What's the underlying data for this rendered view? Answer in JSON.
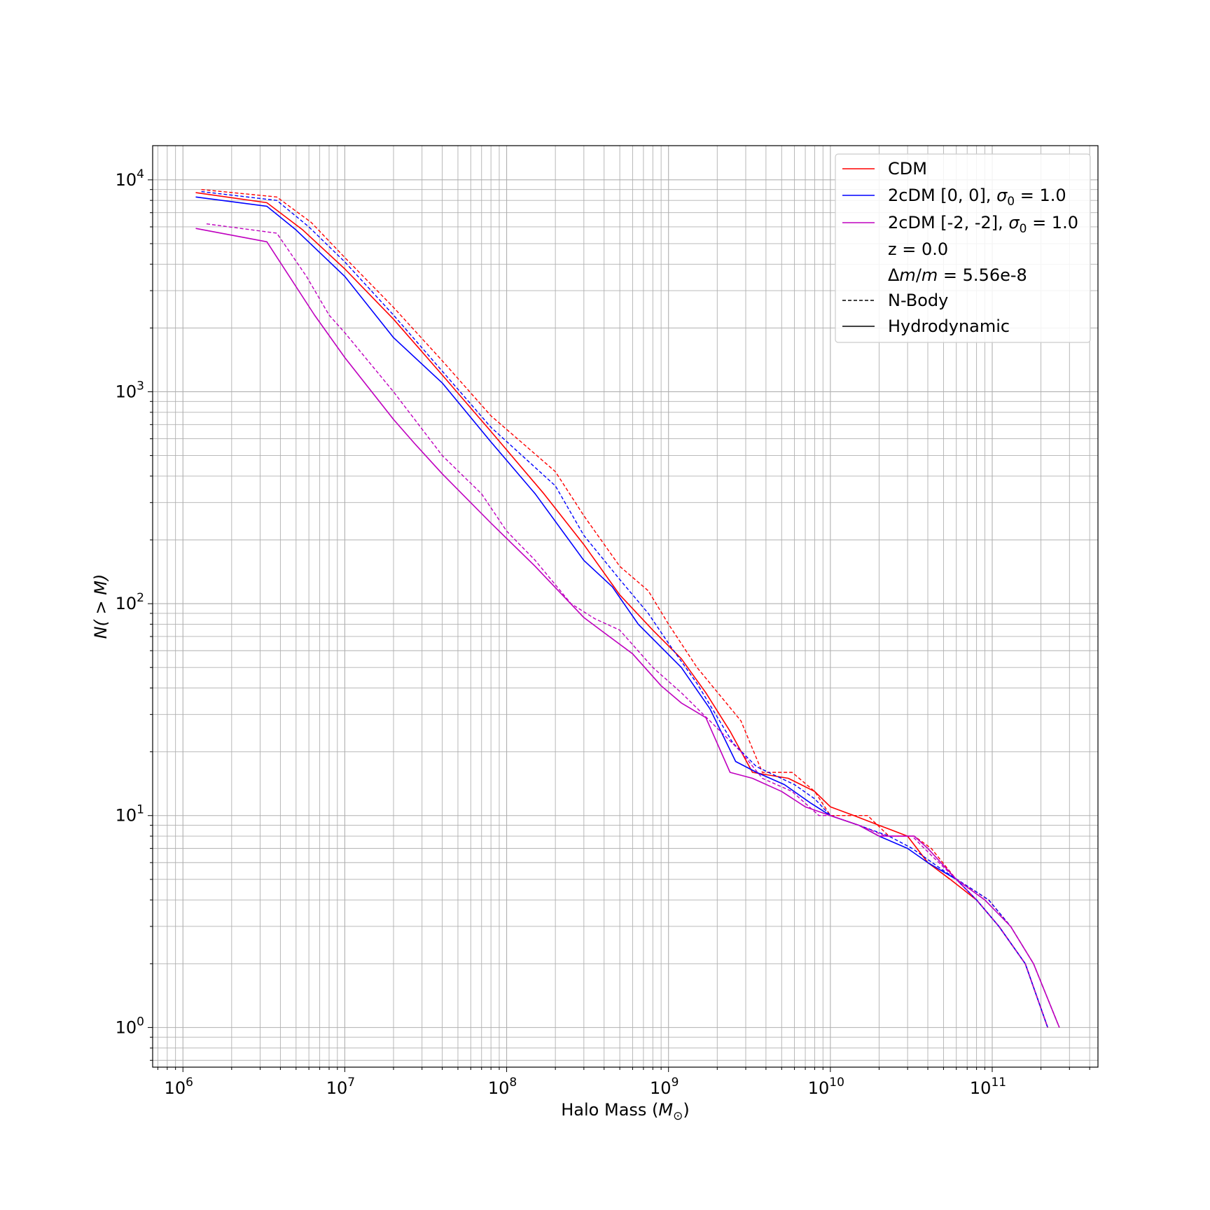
{
  "chart_data": {
    "type": "line",
    "title": "",
    "xlabel": "Halo Mass",
    "xlabel_unit": "M",
    "xlabel_unit_sub": "⊙",
    "ylabel_prefix": "N( > M)",
    "x_scale": "log",
    "y_scale": "log",
    "xlim": [
      650000,
      450000000000
    ],
    "ylim": [
      0.65,
      14500
    ],
    "grid": true,
    "legend_position": "top-right",
    "x_ticks": [
      {
        "value": 1000000,
        "base": "10",
        "exp": "6"
      },
      {
        "value": 10000000,
        "base": "10",
        "exp": "7"
      },
      {
        "value": 100000000,
        "base": "10",
        "exp": "8"
      },
      {
        "value": 1000000000,
        "base": "10",
        "exp": "9"
      },
      {
        "value": 10000000000,
        "base": "10",
        "exp": "10"
      },
      {
        "value": 100000000000,
        "base": "10",
        "exp": "11"
      }
    ],
    "y_ticks": [
      {
        "value": 1,
        "base": "10",
        "exp": "0"
      },
      {
        "value": 10,
        "base": "10",
        "exp": "1"
      },
      {
        "value": 100,
        "base": "10",
        "exp": "2"
      },
      {
        "value": 1000,
        "base": "10",
        "exp": "3"
      },
      {
        "value": 10000,
        "base": "10",
        "exp": "4"
      }
    ],
    "legend": [
      {
        "kind": "line",
        "color": "#ff0000",
        "dash": "solid",
        "text": "CDM"
      },
      {
        "kind": "line",
        "color": "#0000ff",
        "dash": "solid",
        "text": "2cDM [0, 0], ",
        "sigma": "σ",
        "sigma_sub": "0",
        "tail": " =  1.0"
      },
      {
        "kind": "line",
        "color": "#bf00bf",
        "dash": "solid",
        "text": "2cDM [-2, -2], ",
        "sigma": "σ",
        "sigma_sub": "0",
        "tail": " =  1.0"
      },
      {
        "kind": "text",
        "text": "z = 0.0"
      },
      {
        "kind": "text",
        "text": "Δm/m = 5.56e-8"
      },
      {
        "kind": "line",
        "color": "#000000",
        "dash": "dashed",
        "text": "N-Body"
      },
      {
        "kind": "line",
        "color": "#000000",
        "dash": "solid",
        "text": "Hydrodynamic"
      }
    ],
    "series": [
      {
        "group": "CDM",
        "sim": "N-Body",
        "color": "#ff0000",
        "dash": "dashed",
        "x": [
          1300000,
          3800000,
          6200000,
          10000000,
          20000000,
          40000000,
          80000000,
          200000000,
          300000000,
          500000000,
          750000000,
          1000000000,
          1500000000,
          2800000000,
          3800000000,
          5800000000,
          8000000000,
          10000000000,
          17000000000,
          23000000000,
          33000000000,
          42000000000,
          60000000000,
          75000000000,
          95000000000,
          130000000000,
          180000000000,
          260000000000
        ],
        "y": [
          9000,
          8300,
          6300,
          4300,
          2500,
          1400,
          770,
          420,
          260,
          150,
          115,
          80,
          50,
          28,
          16,
          16,
          13,
          10,
          10,
          8,
          8,
          7,
          5,
          4.5,
          4,
          3,
          2,
          1
        ]
      },
      {
        "group": "CDM",
        "sim": "Hydrodynamic",
        "color": "#ff0000",
        "dash": "solid",
        "x": [
          1200000,
          3300000,
          5500000,
          10000000,
          20000000,
          40000000,
          80000000,
          170000000,
          300000000,
          500000000,
          800000000,
          1200000000,
          1700000000,
          2400000000,
          3300000000,
          5500000000,
          8000000000,
          10000000000,
          14000000000,
          20000000000,
          30000000000,
          40000000000,
          55000000000,
          80000000000,
          110000000000,
          160000000000,
          220000000000
        ],
        "y": [
          8700,
          7800,
          5800,
          3800,
          2200,
          1200,
          650,
          330,
          190,
          110,
          75,
          55,
          38,
          25,
          16,
          15,
          13,
          11,
          10,
          9,
          8,
          6,
          5,
          4,
          3,
          2,
          1
        ]
      },
      {
        "group": "2cDM [0, 0]",
        "sim": "N-Body",
        "color": "#0000ff",
        "dash": "dashed",
        "x": [
          1300000,
          3800000,
          6000000,
          10000000,
          20000000,
          40000000,
          80000000,
          200000000,
          300000000,
          500000000,
          750000000,
          1000000000,
          1500000000,
          2500000000,
          3500000000,
          6000000000,
          8000000000,
          10000000000,
          15000000000,
          23000000000,
          32000000000,
          50000000000,
          75000000000,
          95000000000,
          130000000000,
          180000000000,
          260000000000
        ],
        "y": [
          8800,
          8000,
          6000,
          4100,
          2300,
          1250,
          680,
          360,
          210,
          130,
          90,
          65,
          42,
          22,
          17,
          14,
          12,
          10,
          9,
          8,
          7,
          5.5,
          4.5,
          4,
          3,
          2,
          1
        ]
      },
      {
        "group": "2cDM [0, 0]",
        "sim": "Hydrodynamic",
        "color": "#0000ff",
        "dash": "solid",
        "x": [
          1200000,
          3300000,
          5000000,
          10000000,
          20000000,
          40000000,
          80000000,
          150000000,
          300000000,
          450000000,
          650000000,
          1200000000,
          1800000000,
          2600000000,
          3500000000,
          5200000000,
          7500000000,
          10000000000,
          15000000000,
          20000000000,
          30000000000,
          40000000000,
          60000000000,
          80000000000,
          110000000000,
          160000000000,
          220000000000
        ],
        "y": [
          8300,
          7500,
          5800,
          3500,
          1800,
          1100,
          580,
          330,
          160,
          120,
          80,
          50,
          32,
          18,
          16,
          14,
          11.5,
          10,
          9,
          8,
          7,
          6,
          5,
          4,
          3,
          2,
          1
        ]
      },
      {
        "group": "2cDM [-2, -2]",
        "sim": "N-Body",
        "color": "#bf00bf",
        "dash": "dashed",
        "x": [
          1400000,
          3800000,
          5800000,
          8000000,
          10000000,
          20000000,
          40000000,
          70000000,
          100000000,
          150000000,
          250000000,
          350000000,
          500000000,
          800000000,
          1200000000,
          1800000000,
          2800000000,
          3800000000,
          5800000000,
          8500000000,
          10000000000,
          15000000000,
          22000000000,
          32000000000,
          42000000000,
          60000000000,
          80000000000,
          110000000000,
          160000000000,
          220000000000
        ],
        "y": [
          6200,
          5600,
          3500,
          2300,
          1900,
          1000,
          500,
          330,
          220,
          160,
          100,
          85,
          75,
          50,
          38,
          28,
          20,
          15,
          13,
          10,
          10,
          9,
          8,
          8,
          6.5,
          5,
          4,
          3,
          2,
          1
        ]
      },
      {
        "group": "2cDM [-2, -2]",
        "sim": "Hydrodynamic",
        "color": "#bf00bf",
        "dash": "solid",
        "x": [
          1200000,
          3300000,
          6500000,
          10000000,
          20000000,
          27000000,
          40000000,
          80000000,
          150000000,
          300000000,
          400000000,
          600000000,
          900000000,
          1200000000,
          1700000000,
          2400000000,
          3300000000,
          5000000000,
          7000000000,
          10000000000,
          15000000000,
          20000000000,
          33000000000,
          40000000000,
          60000000000,
          90000000000,
          130000000000,
          180000000000,
          260000000000
        ],
        "y": [
          5900,
          5100,
          2300,
          1450,
          740,
          570,
          410,
          240,
          150,
          86,
          73,
          58,
          41,
          34,
          29,
          16,
          15,
          13,
          11,
          10,
          9,
          8,
          8,
          7,
          5,
          4,
          3,
          2,
          1
        ]
      }
    ]
  }
}
